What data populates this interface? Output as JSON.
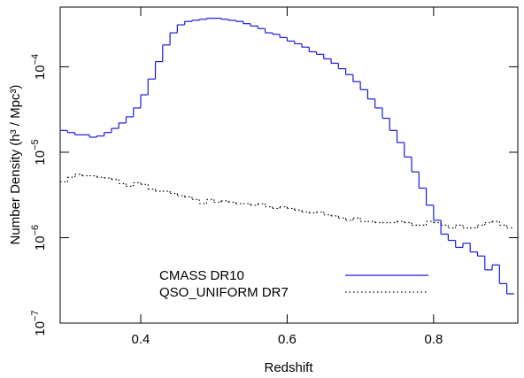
{
  "chart_data": {
    "type": "histogram",
    "x_label": "Redshift",
    "y_label": "Number Density (h³ / Mpc³)",
    "log_y": true,
    "legend": "lower center",
    "xlim": [
      0.29,
      0.915
    ],
    "ylim": [
      1e-07,
      0.0005
    ],
    "xticks": [
      0.4,
      0.6,
      0.8
    ],
    "yticks": [
      {
        "value": 1e-07,
        "label": "10−7"
      },
      {
        "value": 1e-06,
        "label": "10−6"
      },
      {
        "value": 1e-05,
        "label": "10−5"
      },
      {
        "value": 0.0001,
        "label": "10−4"
      }
    ],
    "bins": [
      0.29,
      0.3,
      0.31,
      0.32,
      0.33,
      0.34,
      0.35,
      0.36,
      0.37,
      0.38,
      0.39,
      0.4,
      0.41,
      0.42,
      0.43,
      0.44,
      0.45,
      0.46,
      0.47,
      0.48,
      0.49,
      0.5,
      0.51,
      0.52,
      0.53,
      0.54,
      0.55,
      0.56,
      0.57,
      0.58,
      0.59,
      0.6,
      0.61,
      0.62,
      0.63,
      0.64,
      0.65,
      0.66,
      0.67,
      0.68,
      0.69,
      0.7,
      0.71,
      0.72,
      0.73,
      0.74,
      0.75,
      0.76,
      0.77,
      0.78,
      0.79,
      0.8,
      0.81,
      0.82,
      0.83,
      0.84,
      0.85,
      0.86,
      0.87,
      0.88,
      0.89,
      0.9,
      0.91
    ],
    "series": [
      {
        "name": "CMASS DR10",
        "color": "#1a1adb",
        "linestyle": "solid",
        "values": [
          1.8e-05,
          1.7e-05,
          1.6e-05,
          1.6e-05,
          1.5e-05,
          1.55e-05,
          1.7e-05,
          1.9e-05,
          2.2e-05,
          2.6e-05,
          3.3e-05,
          4.7e-05,
          7.2e-05,
          0.000115,
          0.00018,
          0.00025,
          0.00031,
          0.00034,
          0.00035,
          0.00036,
          0.00037,
          0.00037,
          0.00036,
          0.00035,
          0.00034,
          0.00032,
          0.0003,
          0.00028,
          0.00025,
          0.00024,
          0.00022,
          0.0002,
          0.000186,
          0.00017,
          0.00015,
          0.00014,
          0.000124,
          0.00011,
          9.5e-05,
          8.1e-05,
          6.7e-05,
          5.4e-05,
          4.2e-05,
          3.3e-05,
          2.5e-05,
          1.8e-05,
          1.3e-05,
          8.8e-06,
          5.9e-06,
          3.8e-06,
          2.4e-06,
          1.6e-06,
          1.1e-06,
          9.3e-07,
          7.7e-07,
          8.6e-07,
          6.8e-07,
          6.1e-07,
          4.2e-07,
          4.8e-07,
          2.9e-07,
          2.2e-07
        ]
      },
      {
        "name": "QSO_UNIFORM DR7",
        "color": "#000000",
        "linestyle": "dotted",
        "values": [
          4.5e-06,
          5.1e-06,
          5.5e-06,
          5.3e-06,
          5.3e-06,
          5.1e-06,
          5e-06,
          4.8e-06,
          4.3e-06,
          4e-06,
          4.4e-06,
          4.2e-06,
          3.7e-06,
          3.5e-06,
          3.5e-06,
          3.3e-06,
          3.1e-06,
          3e-06,
          2.8e-06,
          2.5e-06,
          2.8e-06,
          2.6e-06,
          2.7e-06,
          2.6e-06,
          2.5e-06,
          2.5e-06,
          2.4e-06,
          2.5e-06,
          2.3e-06,
          2.2e-06,
          2.3e-06,
          2.2e-06,
          2.1e-06,
          2e-06,
          1.95e-06,
          2e-06,
          1.85e-06,
          1.8e-06,
          1.7e-06,
          1.6e-06,
          1.7e-06,
          1.55e-06,
          1.55e-06,
          1.5e-06,
          1.5e-06,
          1.5e-06,
          1.55e-06,
          1.5e-06,
          1.4e-06,
          1.4e-06,
          1.55e-06,
          1.5e-06,
          1.4e-06,
          1.3e-06,
          1.4e-06,
          1.3e-06,
          1.3e-06,
          1.4e-06,
          1.5e-06,
          1.55e-06,
          1.4e-06,
          1.3e-06
        ]
      }
    ]
  }
}
